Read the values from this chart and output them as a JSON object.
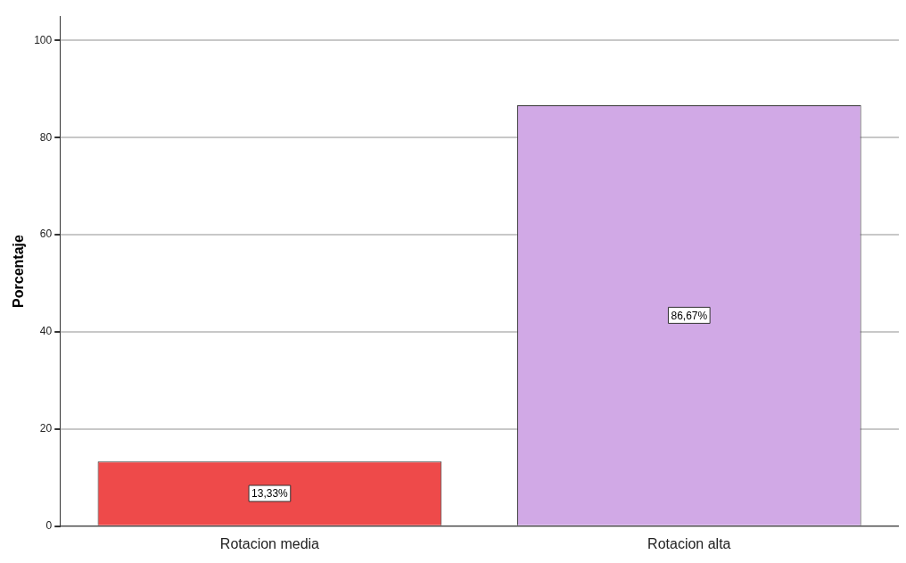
{
  "chart_data": {
    "type": "bar",
    "ylabel": "Porcentaje",
    "categories": [
      "Rotacion media",
      "Rotacion alta"
    ],
    "values": [
      13.33,
      86.67
    ],
    "colors": [
      "#ee4a4a",
      "#d1a9e6"
    ],
    "value_labels": [
      "13,33%",
      "86,67%"
    ],
    "ylim": [
      0,
      105
    ],
    "yticks": [
      0,
      20,
      40,
      60,
      80,
      100
    ],
    "grid": "y",
    "legend": false
  }
}
